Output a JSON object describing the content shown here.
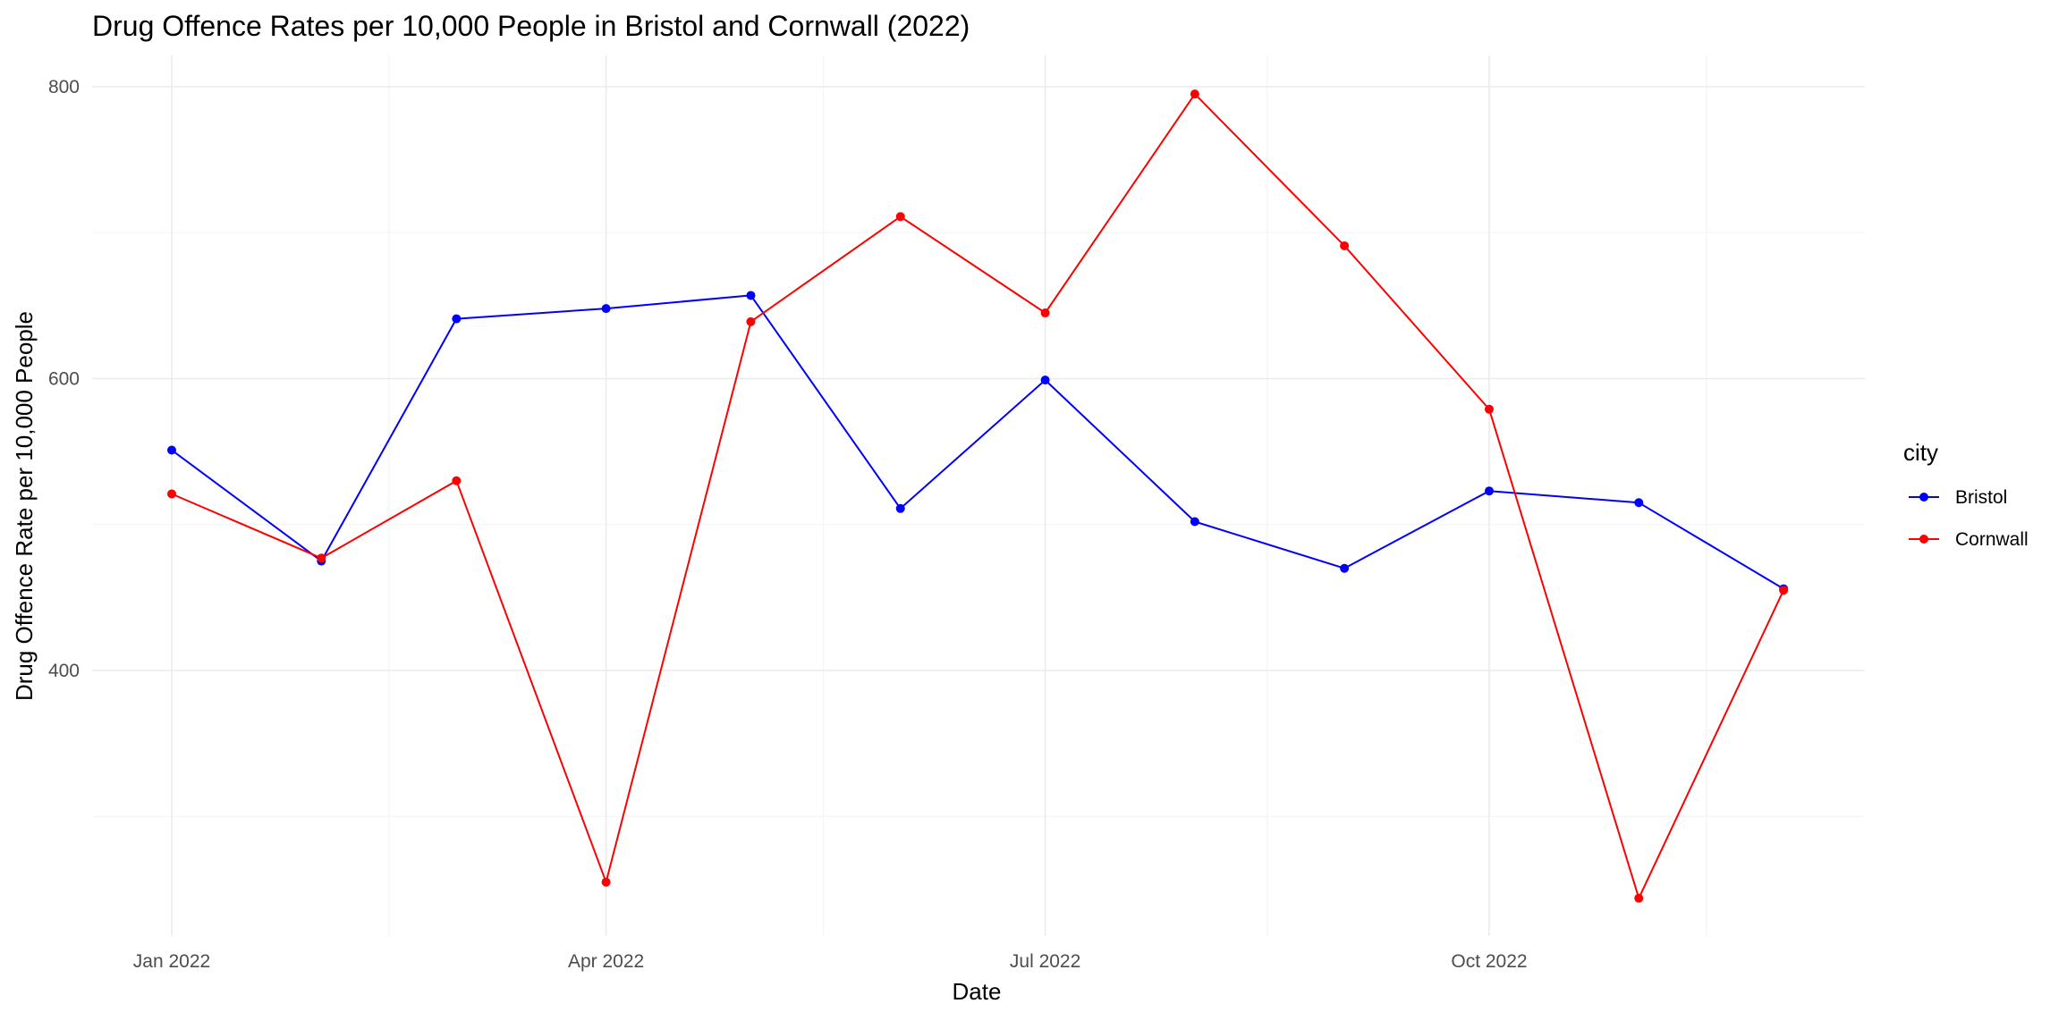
{
  "chart_data": {
    "type": "line",
    "title": "Drug Offence Rates per 10,000 People in Bristol and Cornwall (2022)",
    "xlabel": "Date",
    "ylabel": "Drug Offence Rate per 10,000 People",
    "x": [
      "2022-01-01",
      "2022-02-01",
      "2022-03-01",
      "2022-04-01",
      "2022-05-01",
      "2022-06-01",
      "2022-07-01",
      "2022-08-01",
      "2022-09-01",
      "2022-10-01",
      "2022-11-01",
      "2022-12-01"
    ],
    "x_ticks": [
      {
        "date": "2022-01-01",
        "label": "Jan 2022"
      },
      {
        "date": "2022-04-01",
        "label": "Apr 2022"
      },
      {
        "date": "2022-07-01",
        "label": "Jul 2022"
      },
      {
        "date": "2022-10-01",
        "label": "Oct 2022"
      }
    ],
    "y_ticks": [
      400,
      600,
      800
    ],
    "ylim": [
      220,
      820
    ],
    "grid": true,
    "legend": {
      "title": "city",
      "position": "right"
    },
    "series": [
      {
        "name": "Bristol",
        "color": "#0000ff",
        "values": [
          551,
          475,
          641,
          648,
          657,
          511,
          599,
          502,
          470,
          523,
          515,
          456
        ]
      },
      {
        "name": "Cornwall",
        "color": "#ff0000",
        "values": [
          521,
          477,
          530,
          255,
          639,
          711,
          645,
          795,
          691,
          579,
          244,
          455
        ]
      }
    ]
  }
}
